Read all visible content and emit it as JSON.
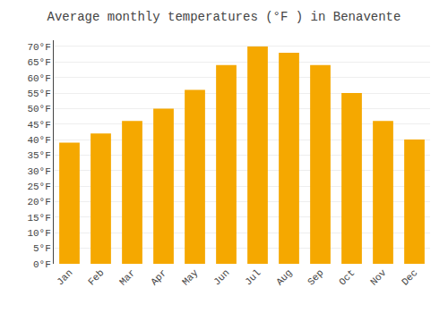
{
  "chart_data": {
    "type": "bar",
    "title": "Average monthly temperatures (°F ) in Benavente",
    "categories": [
      "Jan",
      "Feb",
      "Mar",
      "Apr",
      "May",
      "Jun",
      "Jul",
      "Aug",
      "Sep",
      "Oct",
      "Nov",
      "Dec"
    ],
    "values": [
      39,
      42,
      46,
      50,
      56,
      64,
      70,
      68,
      64,
      55,
      46,
      40
    ],
    "color": "#F5A800",
    "ylim": [
      0,
      72
    ],
    "yticks": [
      {
        "value": 0,
        "label": "0°F"
      },
      {
        "value": 5,
        "label": "5°F"
      },
      {
        "value": 10,
        "label": "10°F"
      },
      {
        "value": 15,
        "label": "15°F"
      },
      {
        "value": 20,
        "label": "20°F"
      },
      {
        "value": 25,
        "label": "25°F"
      },
      {
        "value": 30,
        "label": "30°F"
      },
      {
        "value": 35,
        "label": "35°F"
      },
      {
        "value": 40,
        "label": "40°F"
      },
      {
        "value": 45,
        "label": "45°F"
      },
      {
        "value": 50,
        "label": "50°F"
      },
      {
        "value": 55,
        "label": "55°F"
      },
      {
        "value": 60,
        "label": "60°F"
      },
      {
        "value": 65,
        "label": "65°F"
      },
      {
        "value": 70,
        "label": "70°F"
      }
    ],
    "grid": true
  }
}
